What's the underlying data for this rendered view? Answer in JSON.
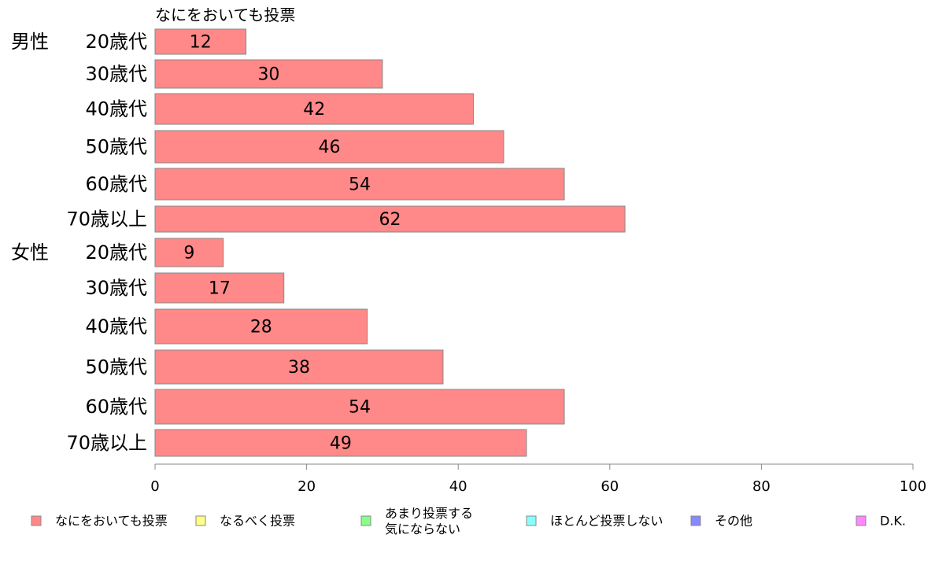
{
  "chart_data": {
    "type": "bar",
    "orientation": "horizontal",
    "series_title": "なにをおいても投票",
    "groups": [
      {
        "name": "男性",
        "categories": [
          "20歳代",
          "30歳代",
          "40歳代",
          "50歳代",
          "60歳代",
          "70歳以上"
        ],
        "values": [
          12,
          30,
          42,
          46,
          54,
          62
        ]
      },
      {
        "name": "女性",
        "categories": [
          "20歳代",
          "30歳代",
          "40歳代",
          "50歳代",
          "60歳代",
          "70歳以上"
        ],
        "values": [
          9,
          17,
          28,
          38,
          54,
          49
        ]
      }
    ],
    "xlim": [
      0,
      100
    ],
    "xticks": [
      0,
      20,
      40,
      60,
      80,
      100
    ],
    "grid": false,
    "legend": {
      "placement": "bottom",
      "entries": [
        {
          "label": "なにをおいても投票",
          "color": "#ff8888"
        },
        {
          "label": "なるべく投票",
          "color": "#ffff88"
        },
        {
          "label": "あまり投票する\n気にならない",
          "color": "#88ff88"
        },
        {
          "label": "ほとんど投票しない",
          "color": "#88ffff"
        },
        {
          "label": "その他",
          "color": "#8888ff"
        },
        {
          "label": "D.K.",
          "color": "#ff88ff"
        }
      ]
    }
  }
}
